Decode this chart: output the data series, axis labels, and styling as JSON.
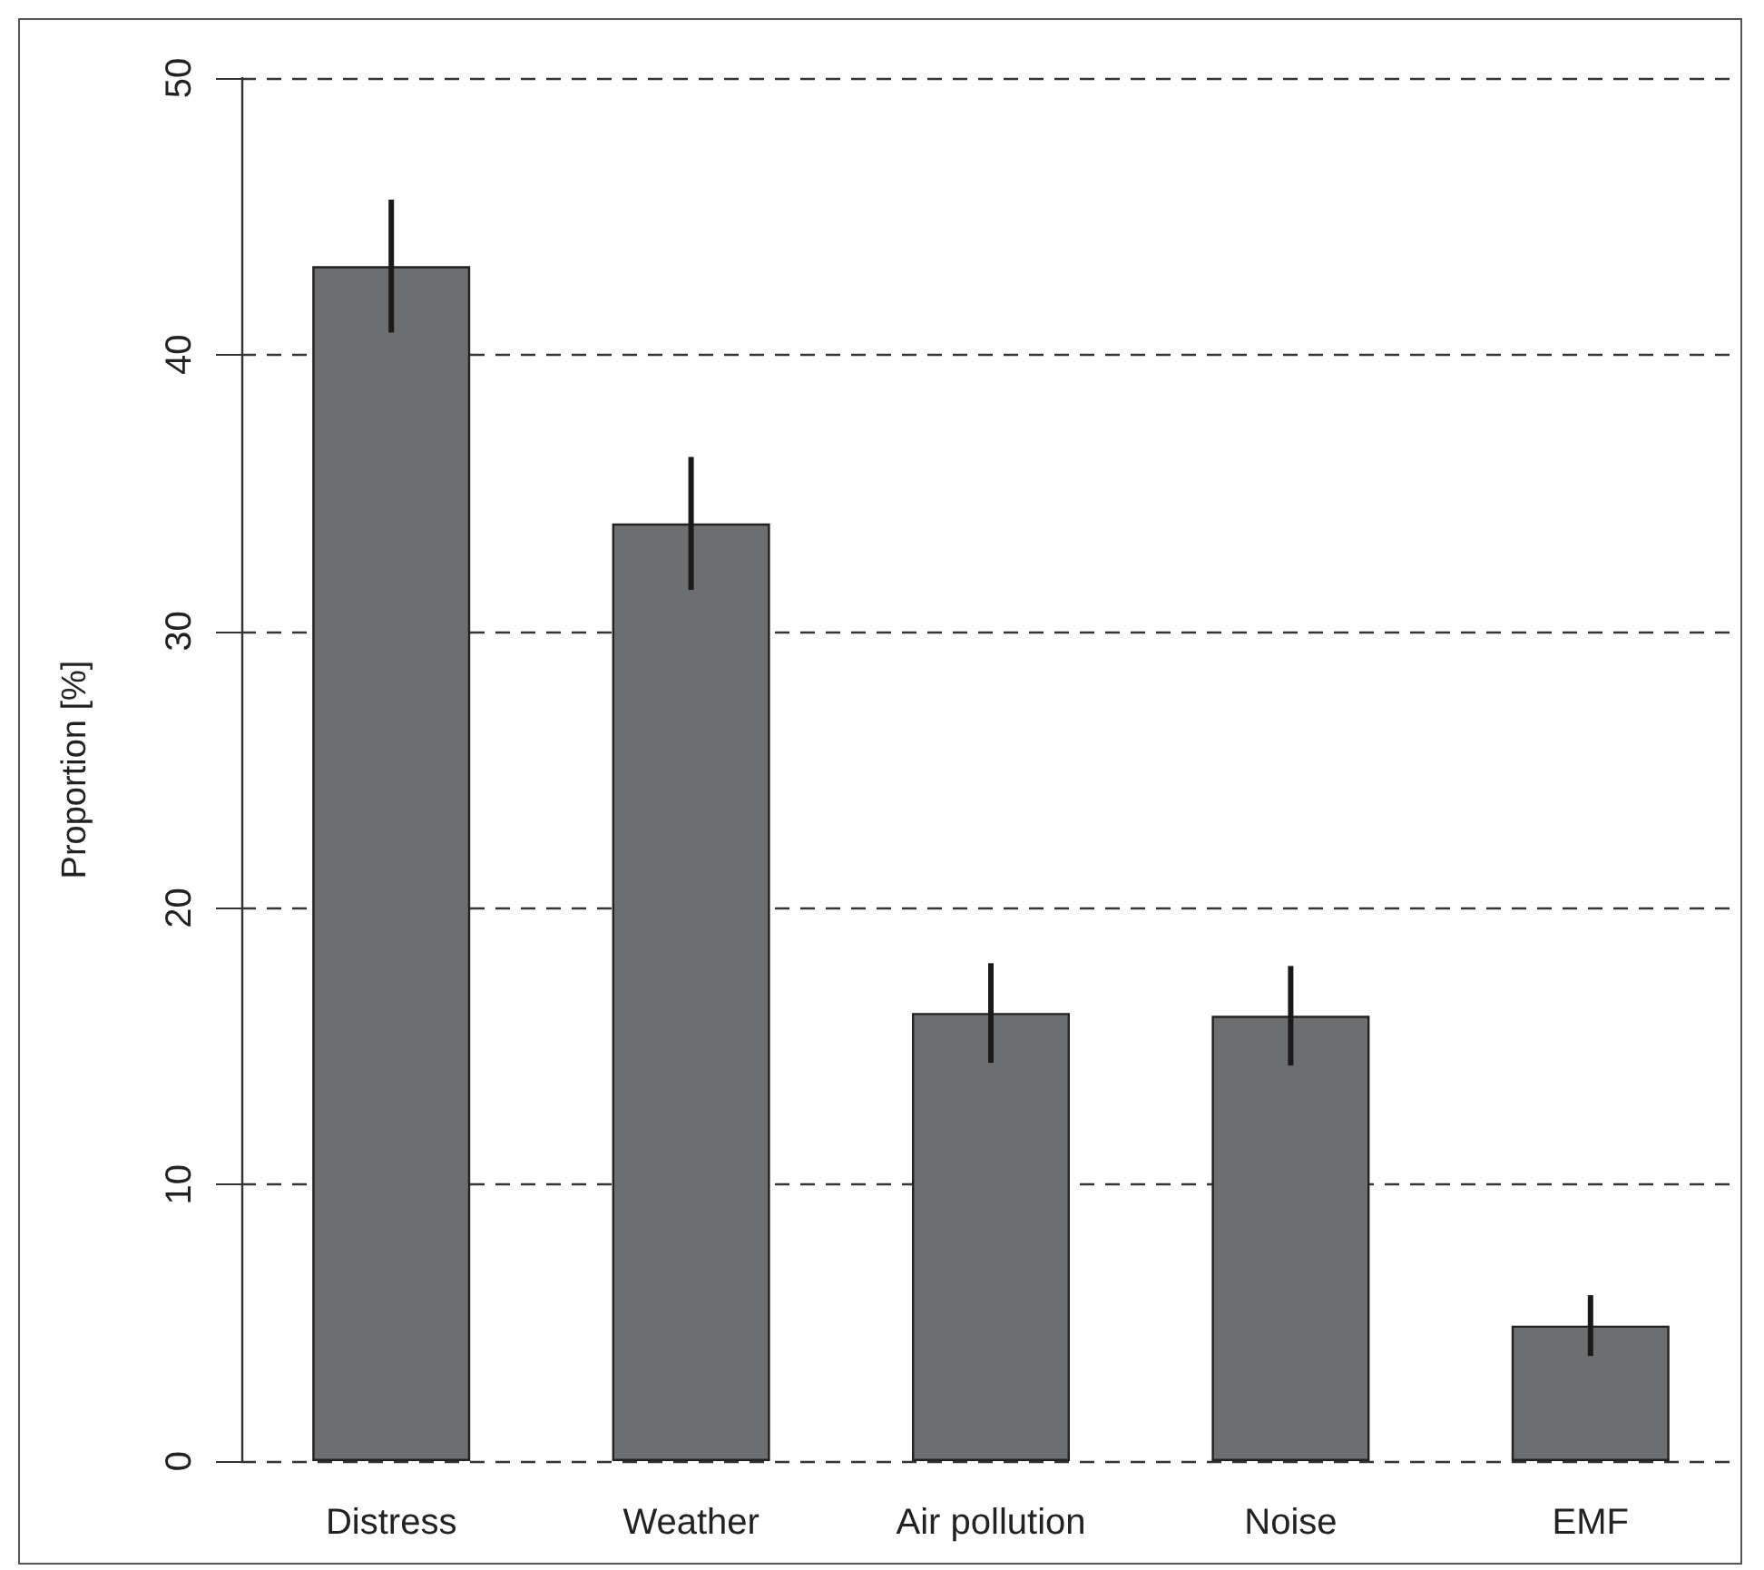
{
  "chart_data": {
    "type": "bar",
    "ylabel": "Proportion [%]",
    "categories": [
      "Distress",
      "Weather",
      "Air pollution",
      "Noise",
      "EMF"
    ],
    "values": [
      43.2,
      33.9,
      16.2,
      16.1,
      4.9
    ],
    "errors": [
      2.4,
      2.4,
      1.8,
      1.8,
      1.1
    ],
    "color": "#6d6e70",
    "ylim": [
      0,
      50
    ],
    "yticks": [
      0,
      10,
      20,
      30,
      40,
      50
    ],
    "grid": "y"
  }
}
